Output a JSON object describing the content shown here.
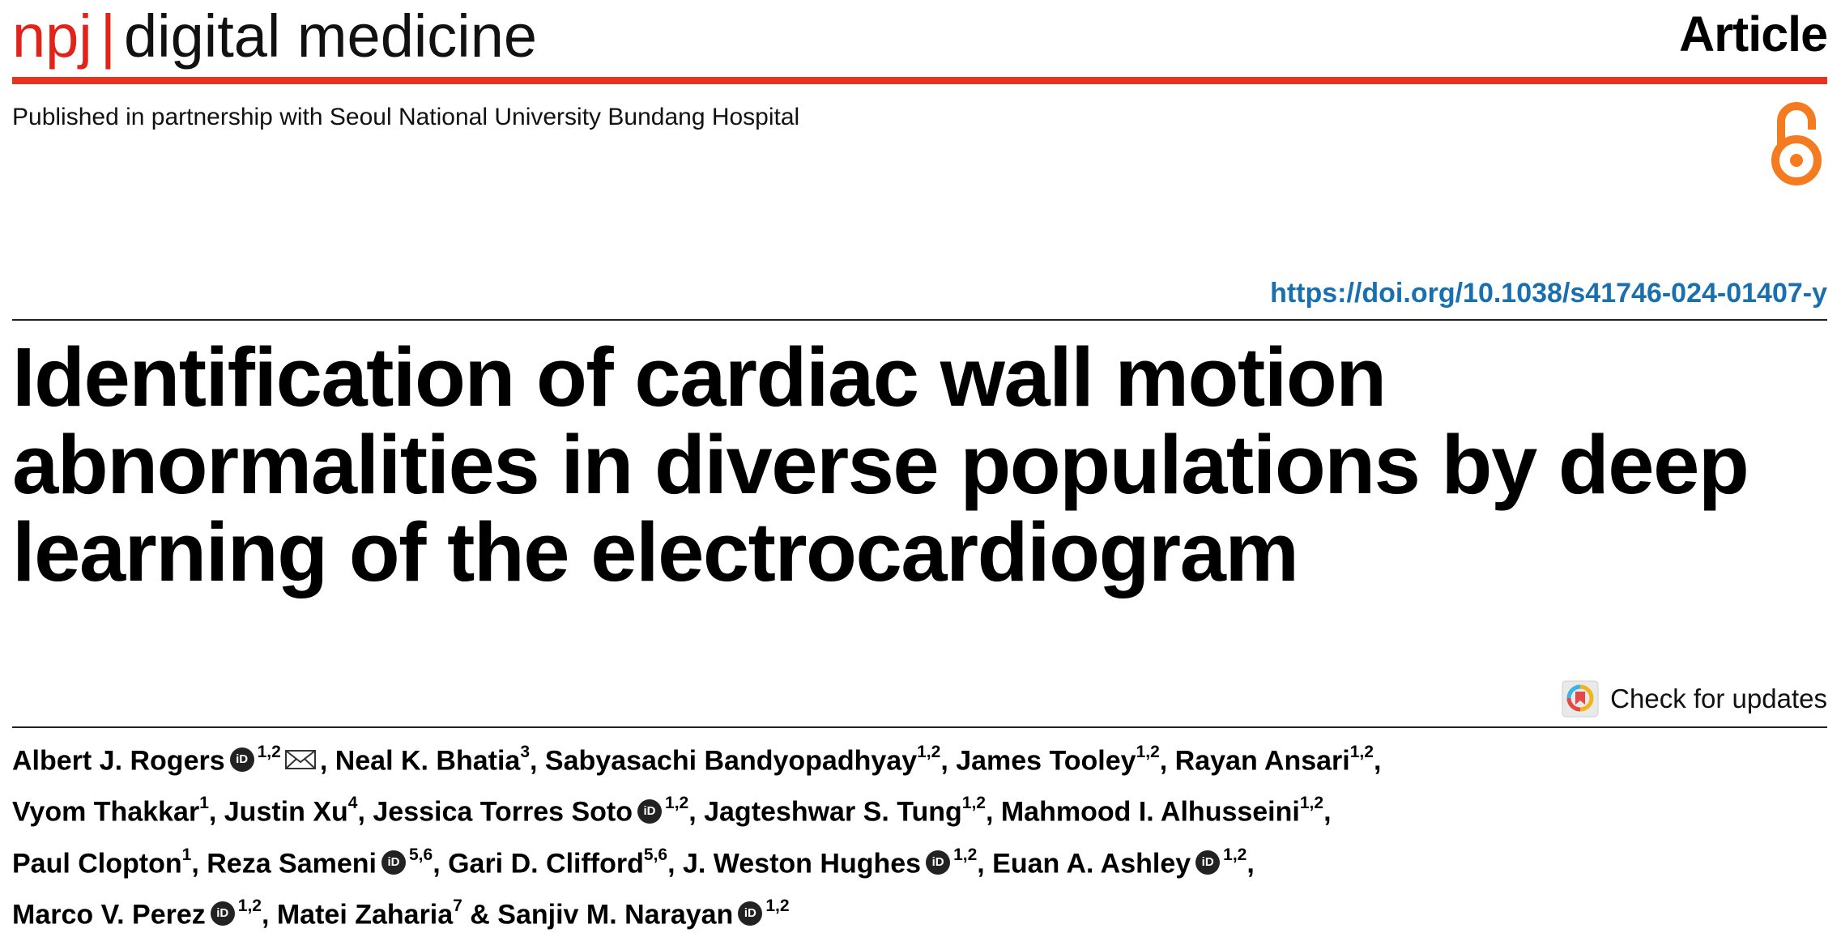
{
  "header": {
    "journal_prefix": "npj",
    "separator": "|",
    "journal_name": "digital medicine",
    "article_type": "Article"
  },
  "partnership": "Published in partnership with Seoul National University Bundang Hospital",
  "doi": "https://doi.org/10.1038/s41746-024-01407-y",
  "title": "Identification of cardiac wall motion abnormalities in diverse populations by deep learning of the electrocardiogram",
  "check_updates_label": "Check for updates",
  "icons": {
    "open_access": "open-access-lock-icon",
    "email": "envelope-icon",
    "orcid": "orcid-icon",
    "check_updates": "crossmark-badge-icon"
  },
  "colors": {
    "brand_red": "#e2231a",
    "open_access_orange": "#f47b20",
    "doi_blue": "#1a6fae"
  },
  "authors": {
    "a1": {
      "name": "Albert J. Rogers",
      "sup": "1,2",
      "orcid": "iD"
    },
    "a2": {
      "name": ", Neal K. Bhatia",
      "sup": "3"
    },
    "a3": {
      "name": ", Sabyasachi Bandyopadhyay",
      "sup": "1,2"
    },
    "a4": {
      "name": ", James Tooley",
      "sup": "1,2"
    },
    "a5": {
      "name": ", Rayan Ansari",
      "sup": "1,2",
      "tail": ","
    },
    "a6": {
      "name": "Vyom Thakkar",
      "sup": "1"
    },
    "a7": {
      "name": ", Justin Xu",
      "sup": "4"
    },
    "a8": {
      "name": ", Jessica Torres Soto",
      "sup": "1,2",
      "orcid": "iD"
    },
    "a9": {
      "name": ", Jagteshwar S. Tung",
      "sup": "1,2"
    },
    "a10": {
      "name": ", Mahmood I. Alhusseini",
      "sup": "1,2",
      "tail": ","
    },
    "a11": {
      "name": "Paul Clopton",
      "sup": "1"
    },
    "a12": {
      "name": ", Reza Sameni",
      "sup": "5,6",
      "orcid": "iD"
    },
    "a13": {
      "name": ", Gari D. Clifford",
      "sup": "5,6"
    },
    "a14": {
      "name": ", J. Weston Hughes",
      "sup": "1,2",
      "orcid": "iD"
    },
    "a15": {
      "name": ", Euan A. Ashley",
      "sup": "1,2",
      "orcid": "iD",
      "tail": ","
    },
    "a16": {
      "name": "Marco V. Perez",
      "sup": "1,2",
      "orcid": "iD"
    },
    "a17": {
      "name": ", Matei Zaharia",
      "sup": "7"
    },
    "a18": {
      "name": " & Sanjiv M. Narayan",
      "sup": "1,2",
      "orcid": "iD"
    }
  }
}
